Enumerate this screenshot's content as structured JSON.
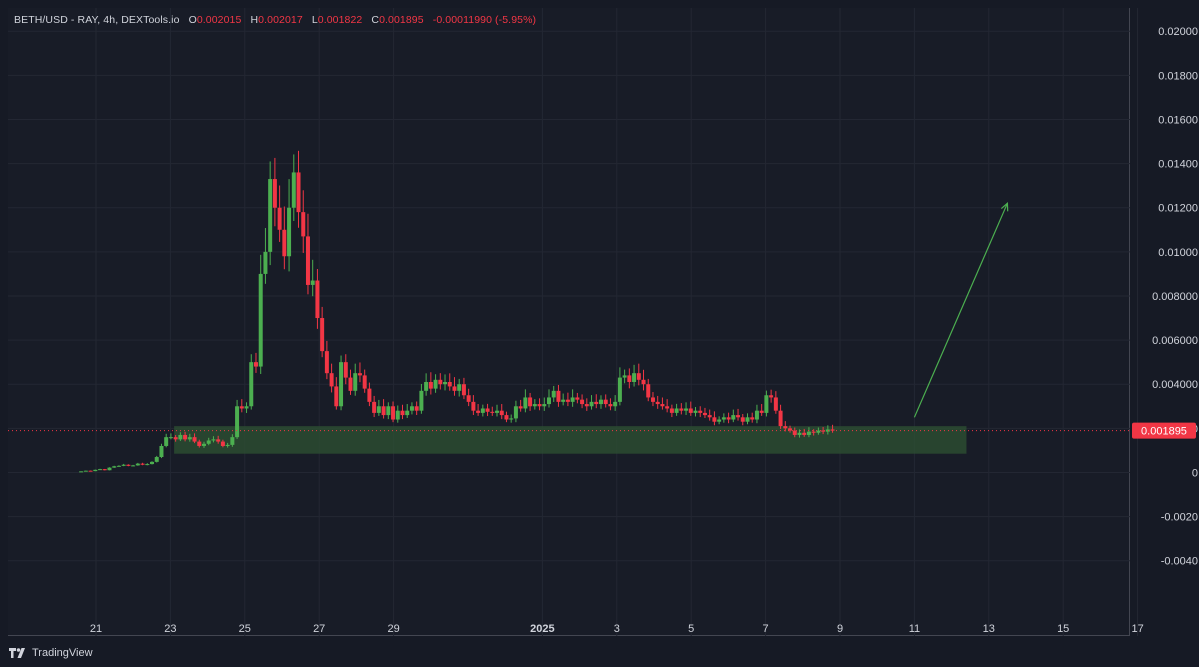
{
  "header": {
    "symbol": "BETH/USD - RAY, 4h, DEXTools.io",
    "open_label": "O",
    "open": "0.002015",
    "high_label": "H",
    "high": "0.002017",
    "low_label": "L",
    "low": "0.001822",
    "close_label": "C",
    "close": "0.001895",
    "change": "-0.00011990 (-5.95%)"
  },
  "footer": {
    "brand": "TradingView"
  },
  "colors": {
    "up": "#4caf50",
    "down": "#f23645",
    "grid": "#232733",
    "axis_text": "#d1d4dc",
    "zone": "#2e5233",
    "arrow": "#4caf50",
    "price_line": "#f23645"
  },
  "chart_data": {
    "type": "candlestick",
    "y_ticks": [
      "0.02000",
      "0.01800",
      "0.01600",
      "0.01400",
      "0.01200",
      "0.01000",
      "0.008000",
      "0.006000",
      "0.004000",
      "0.002000",
      "0",
      "-0.0020",
      "-0.0040"
    ],
    "ylim": [
      -0.0056,
      0.0206
    ],
    "x_ticks": [
      {
        "label": "21",
        "day": 21
      },
      {
        "label": "23",
        "day": 23
      },
      {
        "label": "25",
        "day": 25
      },
      {
        "label": "27",
        "day": 27
      },
      {
        "label": "29",
        "day": 29
      },
      {
        "label": "2025",
        "day": 33
      },
      {
        "label": "3",
        "day": 35
      },
      {
        "label": "5",
        "day": 37
      },
      {
        "label": "7",
        "day": 39
      },
      {
        "label": "9",
        "day": 41
      },
      {
        "label": "11",
        "day": 43
      },
      {
        "label": "13",
        "day": 45
      },
      {
        "label": "15",
        "day": 47
      },
      {
        "label": "17",
        "day": 49
      }
    ],
    "last_price": "0.001895",
    "last_price_value": 0.001895,
    "support_zone": {
      "low": 0.00085,
      "high": 0.0021,
      "from_day": 23.1,
      "to_day": 44.4
    },
    "projection": {
      "from_day": 43.0,
      "from_price": 0.0025,
      "to_day": 45.5,
      "to_price": 0.0122
    },
    "candles_close": [
      5e-05,
      8e-05,
      6e-05,
      0.00012,
      0.00015,
      0.0001,
      0.00022,
      0.00028,
      0.0003,
      0.00035,
      0.0003,
      0.00032,
      0.0004,
      0.00035,
      0.00038,
      0.00048,
      0.0007,
      0.0012,
      0.0016,
      0.0016,
      0.0015,
      0.0017,
      0.0015,
      0.0016,
      0.0014,
      0.0012,
      0.0013,
      0.00145,
      0.0015,
      0.0014,
      0.0012,
      0.00125,
      0.0016,
      0.003,
      0.0029,
      0.003,
      0.005,
      0.0048,
      0.009,
      0.01,
      0.0133,
      0.012,
      0.011,
      0.0098,
      0.012,
      0.0136,
      0.0118,
      0.0107,
      0.0085,
      0.0087,
      0.007,
      0.0055,
      0.0045,
      0.0039,
      0.003,
      0.005,
      0.0043,
      0.0037,
      0.0045,
      0.0044,
      0.0038,
      0.0032,
      0.0027,
      0.003,
      0.0026,
      0.003,
      0.0024,
      0.0028,
      0.0026,
      0.0028,
      0.003,
      0.0028,
      0.0037,
      0.0041,
      0.0038,
      0.0042,
      0.004,
      0.0041,
      0.0039,
      0.0037,
      0.004,
      0.0035,
      0.0032,
      0.0028,
      0.0027,
      0.0029,
      0.00275,
      0.0027,
      0.0028,
      0.0026,
      0.0024,
      0.00245,
      0.003,
      0.0029,
      0.0034,
      0.003,
      0.0031,
      0.003,
      0.0031,
      0.0034,
      0.0037,
      0.0032,
      0.0033,
      0.0032,
      0.0034,
      0.0033,
      0.0031,
      0.003,
      0.0032,
      0.0031,
      0.0033,
      0.0031,
      0.003,
      0.0032,
      0.0043,
      0.0044,
      0.0041,
      0.0045,
      0.0042,
      0.004,
      0.0034,
      0.0032,
      0.0031,
      0.003,
      0.0029,
      0.0027,
      0.0029,
      0.0028,
      0.0029,
      0.0027,
      0.0028,
      0.0027,
      0.0026,
      0.0025,
      0.0023,
      0.0024,
      0.0025,
      0.0024,
      0.0026,
      0.0025,
      0.0023,
      0.0025,
      0.0024,
      0.0028,
      0.0027,
      0.0035,
      0.0034,
      0.0028,
      0.0021,
      0.002,
      0.0019,
      0.0017,
      0.0018,
      0.0017,
      0.00185,
      0.0018,
      0.0019,
      0.00185,
      0.00195,
      0.001895
    ]
  }
}
